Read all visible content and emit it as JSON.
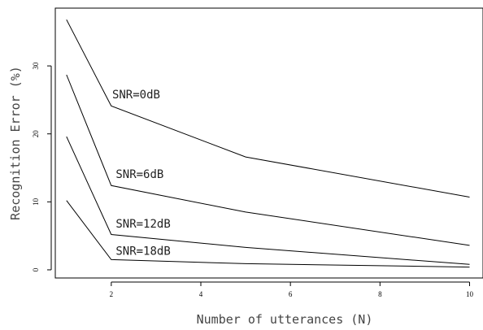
{
  "chart_data": {
    "type": "line",
    "title": "",
    "xlabel": "Number of utterances (N)",
    "ylabel": "Recognition Error (%)",
    "xlim": [
      0.75,
      10.3
    ],
    "ylim": [
      -1.2,
      38.5
    ],
    "x_ticks": [
      2,
      4,
      6,
      8,
      10
    ],
    "y_ticks": [
      0,
      10,
      20,
      30
    ],
    "grid": false,
    "legend": "none",
    "series": [
      {
        "name": "SNR=0dB",
        "x": [
          1,
          2,
          5,
          10
        ],
        "values": [
          36.8,
          24.1,
          16.6,
          10.7
        ]
      },
      {
        "name": "SNR=6dB",
        "x": [
          1,
          2,
          5,
          10
        ],
        "values": [
          28.7,
          12.4,
          8.5,
          3.6
        ]
      },
      {
        "name": "SNR=12dB",
        "x": [
          1,
          2,
          5,
          10
        ],
        "values": [
          19.6,
          5.2,
          3.3,
          0.8
        ]
      },
      {
        "name": "SNR=18dB",
        "x": [
          1,
          2,
          5,
          10
        ],
        "values": [
          10.2,
          1.5,
          0.9,
          0.4
        ]
      }
    ],
    "annotations": [
      {
        "text": "SNR=0dB",
        "x": 2.02,
        "y": 25.2
      },
      {
        "text": "SNR=6dB",
        "x": 2.1,
        "y": 13.5
      },
      {
        "text": "SNR=12dB",
        "x": 2.1,
        "y": 6.2
      },
      {
        "text": "SNR=18dB",
        "x": 2.1,
        "y": 2.2
      }
    ]
  }
}
